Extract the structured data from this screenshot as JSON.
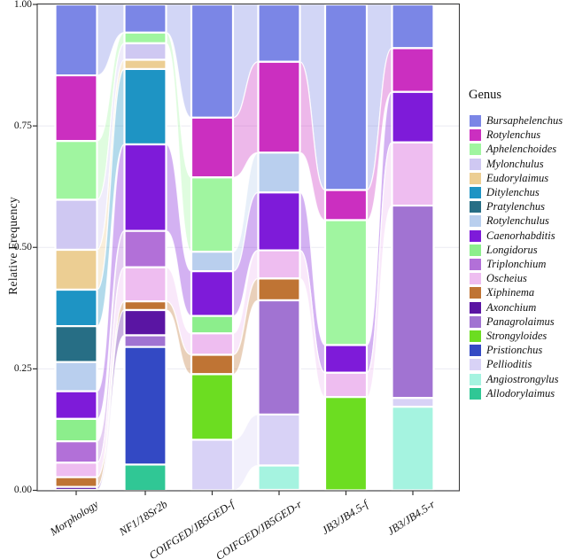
{
  "chart_data": {
    "type": "bar",
    "variant": "alluvial (stacked relative-frequency bars with flow ribbons)",
    "title": "",
    "xlabel": "",
    "ylabel": "Relative Frequency",
    "ylim": [
      0,
      1
    ],
    "ytick_values": [
      0,
      0.25,
      0.5,
      0.75,
      1
    ],
    "ytick_labels": [
      "0.00",
      "0.25",
      "0.50",
      "0.75",
      "1.00"
    ],
    "grid": "faint horizontal gridlines at 0.25 steps, white panel, thin dark border",
    "legend_title": "Genus",
    "legend_position": "right",
    "categories": [
      "Morphology",
      "NF1/18Sr2b",
      "COIFGED/JB5GED-f",
      "COIFGED/JB5GED-r",
      "JB3/JB4.5-f",
      "JB3/JB4.5-r"
    ],
    "series": [
      {
        "name": "Bursaphelenchus",
        "color": "#7b86e6",
        "values": [
          0.146,
          0.058,
          0.233,
          0.118,
          0.382,
          0.09
        ]
      },
      {
        "name": "Rotylenchus",
        "color": "#cb2fc0",
        "values": [
          0.135,
          0,
          0.123,
          0.187,
          0.062,
          0.09
        ]
      },
      {
        "name": "Aphelenchoides",
        "color": "#a0f5a0",
        "values": [
          0.121,
          0.022,
          0.153,
          0,
          0.257,
          0
        ]
      },
      {
        "name": "Mylonchulus",
        "color": "#cfc8f2",
        "values": [
          0.103,
          0.034,
          0,
          0,
          0,
          0
        ]
      },
      {
        "name": "Eudorylaimus",
        "color": "#ecce93",
        "values": [
          0.082,
          0.019,
          0,
          0,
          0,
          0
        ]
      },
      {
        "name": "Ditylenchus",
        "color": "#1e94c4",
        "values": [
          0.075,
          0.155,
          0,
          0,
          0,
          0
        ]
      },
      {
        "name": "Pratylenchus",
        "color": "#276e85",
        "values": [
          0.074,
          0,
          0,
          0,
          0,
          0
        ]
      },
      {
        "name": "Rotylenchulus",
        "color": "#b9cfee",
        "values": [
          0.06,
          0,
          0.04,
          0.082,
          0,
          0
        ]
      },
      {
        "name": "Caenorhabditis",
        "color": "#7e1bd9",
        "values": [
          0.057,
          0.178,
          0.092,
          0.119,
          0.057,
          0.104
        ]
      },
      {
        "name": "Longidorus",
        "color": "#8cee8c",
        "values": [
          0.046,
          0,
          0.036,
          0,
          0,
          0
        ]
      },
      {
        "name": "Triplonchium",
        "color": "#b270d8",
        "values": [
          0.044,
          0.075,
          0,
          0,
          0,
          0
        ]
      },
      {
        "name": "Oscheius",
        "color": "#eebdf0",
        "values": [
          0.03,
          0.07,
          0.044,
          0.058,
          0.05,
          0.13
        ]
      },
      {
        "name": "Xiphinema",
        "color": "#bf7434",
        "values": [
          0.02,
          0.018,
          0.04,
          0.045,
          0,
          0
        ]
      },
      {
        "name": "Axonchium",
        "color": "#5a15a3",
        "values": [
          0.006,
          0.052,
          0,
          0,
          0,
          0
        ]
      },
      {
        "name": "Panagrolaimus",
        "color": "#a173d2",
        "values": [
          0,
          0.024,
          0,
          0.235,
          0,
          0.396
        ]
      },
      {
        "name": "Strongyloides",
        "color": "#6cdd21",
        "values": [
          0,
          0,
          0.135,
          0,
          0.192,
          0
        ]
      },
      {
        "name": "Pristionchus",
        "color": "#3349c4",
        "values": [
          0,
          0.242,
          0,
          0,
          0,
          0
        ]
      },
      {
        "name": "Pellioditis",
        "color": "#d8d2f6",
        "values": [
          0,
          0,
          0.104,
          0.105,
          0,
          0.018
        ]
      },
      {
        "name": "Angiostrongylus",
        "color": "#a5f3e0",
        "values": [
          0,
          0,
          0,
          0.05,
          0,
          0.172
        ]
      },
      {
        "name": "Allodorylaimus",
        "color": "#30c795",
        "values": [
          0,
          0.054,
          0,
          0,
          0,
          0
        ]
      }
    ]
  }
}
